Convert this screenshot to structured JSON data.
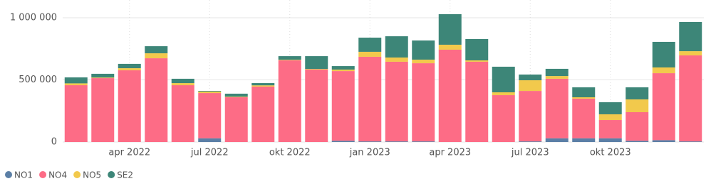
{
  "chart_data": {
    "type": "stacked-bar",
    "categories": [
      null,
      null,
      "apr 2022",
      null,
      null,
      "jul 2022",
      null,
      null,
      "okt 2022",
      null,
      null,
      "jan 2023",
      null,
      null,
      "apr 2023",
      null,
      null,
      "jul 2023",
      null,
      null,
      "okt 2023",
      null,
      null,
      null
    ],
    "series": [
      {
        "name": "NO1",
        "color": "#5b7fa6",
        "values": [
          0,
          0,
          0,
          0,
          0,
          30000,
          0,
          0,
          0,
          0,
          10000,
          5000,
          5000,
          5000,
          0,
          0,
          0,
          5000,
          30000,
          30000,
          30000,
          10000,
          15000,
          5000
        ]
      },
      {
        "name": "NO4",
        "color": "#fd6c86",
        "values": [
          457000,
          514000,
          577000,
          674000,
          457000,
          364000,
          360000,
          446000,
          657000,
          583000,
          561000,
          681000,
          641000,
          629000,
          743000,
          646000,
          377000,
          406000,
          479000,
          319000,
          147000,
          230000,
          539000,
          692000
        ]
      },
      {
        "name": "NO5",
        "color": "#f2c94c",
        "values": [
          15000,
          5000,
          17000,
          40000,
          17000,
          12000,
          5000,
          10000,
          5000,
          5000,
          12000,
          40000,
          34000,
          29000,
          40000,
          11000,
          23000,
          86000,
          22000,
          11000,
          46000,
          103000,
          46000,
          34000
        ]
      },
      {
        "name": "SE2",
        "color": "#3d8678",
        "values": [
          48000,
          30000,
          35000,
          57000,
          35000,
          5000,
          24000,
          18000,
          29000,
          103000,
          28000,
          114000,
          171000,
          154000,
          246000,
          172000,
          206000,
          46000,
          58000,
          80000,
          97000,
          97000,
          206000,
          235000
        ]
      }
    ],
    "ylim": [
      0,
      1000000
    ],
    "yticks": [
      0,
      {
        "value": 500000,
        "label": "500 000"
      },
      {
        "value": 1000000,
        "label": "1 000 000"
      }
    ],
    "grid": true
  }
}
